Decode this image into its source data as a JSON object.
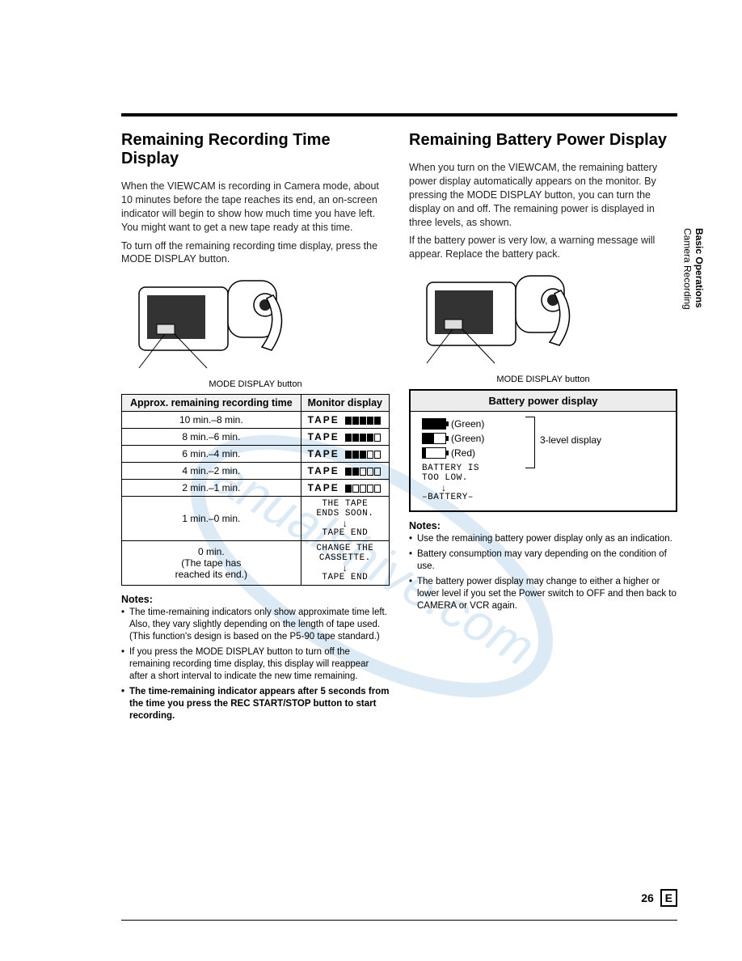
{
  "side_tab": {
    "line1": "Basic Operations",
    "line2": "Camera Recording"
  },
  "left": {
    "heading": "Remaining Recording Time Display",
    "para1": "When the VIEWCAM is recording in Camera mode, about 10 minutes before the tape reaches its end, an on-screen indicator will begin to show how much time you have left. You might want to get a new tape ready at this time.",
    "para2": "To turn off the remaining recording time display, press the MODE DISPLAY button.",
    "caption": "MODE DISPLAY button",
    "table": {
      "col1": "Approx. remaining recording time",
      "col2": "Monitor display",
      "rows": [
        {
          "time": "10 min.–8 min.",
          "label": "TAPE",
          "bars": [
            1,
            1,
            1,
            1,
            1
          ]
        },
        {
          "time": "8 min.–6 min.",
          "label": "TAPE",
          "bars": [
            1,
            1,
            1,
            1,
            0
          ]
        },
        {
          "time": "6 min.–4 min.",
          "label": "TAPE",
          "bars": [
            1,
            1,
            1,
            0,
            0
          ]
        },
        {
          "time": "4 min.–2 min.",
          "label": "TAPE",
          "bars": [
            1,
            1,
            0,
            0,
            0
          ]
        },
        {
          "time": "2 min.–1 min.",
          "label": "TAPE",
          "bars": [
            1,
            0,
            0,
            0,
            0
          ]
        }
      ],
      "row6": {
        "time": "1 min.–0 min.",
        "l1": "THE TAPE",
        "l2": "ENDS SOON.",
        "l3": "TAPE END"
      },
      "row7": {
        "time_l1": "0 min.",
        "time_l2": "(The tape has",
        "time_l3": "reached its end.)",
        "l1": "CHANGE THE",
        "l2": "CASSETTE.",
        "l3": "TAPE END"
      }
    },
    "notes_hd": "Notes:",
    "notes": [
      "The time-remaining indicators only show approximate time left. Also, they vary slightly depending on the length of tape used. (This function's design is based on the P5-90 tape standard.)",
      "If you press the MODE DISPLAY button to turn off the remaining recording time display, this display will reappear after a short interval to indicate the new time remaining."
    ],
    "note_bold": "The time-remaining indicator appears after 5 seconds from the time you press the REC START/STOP button to start recording."
  },
  "right": {
    "heading": "Remaining Battery Power Display",
    "para1": "When you turn on the VIEWCAM, the remaining battery power display automatically appears on the monitor. By pressing the MODE DISPLAY button, you can turn the display on and off. The remaining power is displayed in three levels, as shown.",
    "para2": "If the battery power is very low, a warning message will appear. Replace the battery pack.",
    "caption": "MODE DISPLAY button",
    "box_title": "Battery power display",
    "levels": [
      {
        "fill_pct": 100,
        "label": "(Green)"
      },
      {
        "fill_pct": 50,
        "label": "(Green)"
      },
      {
        "fill_pct": 15,
        "label": "(Red)"
      }
    ],
    "bracket_label": "3-level display",
    "msg_l1": "BATTERY IS",
    "msg_l2": "TOO LOW.",
    "msg_l3": "–BATTERY–",
    "notes_hd": "Notes:",
    "notes": [
      "Use the remaining battery power display only as an indication.",
      "Battery consumption may vary depending on the condition of use.",
      "The battery power display may change to either a higher or lower level if you set the Power switch to OFF and then back to CAMERA or VCR again."
    ]
  },
  "page_number": "26",
  "page_letter": "E",
  "colors": {
    "watermark": "#9cc5e8"
  }
}
